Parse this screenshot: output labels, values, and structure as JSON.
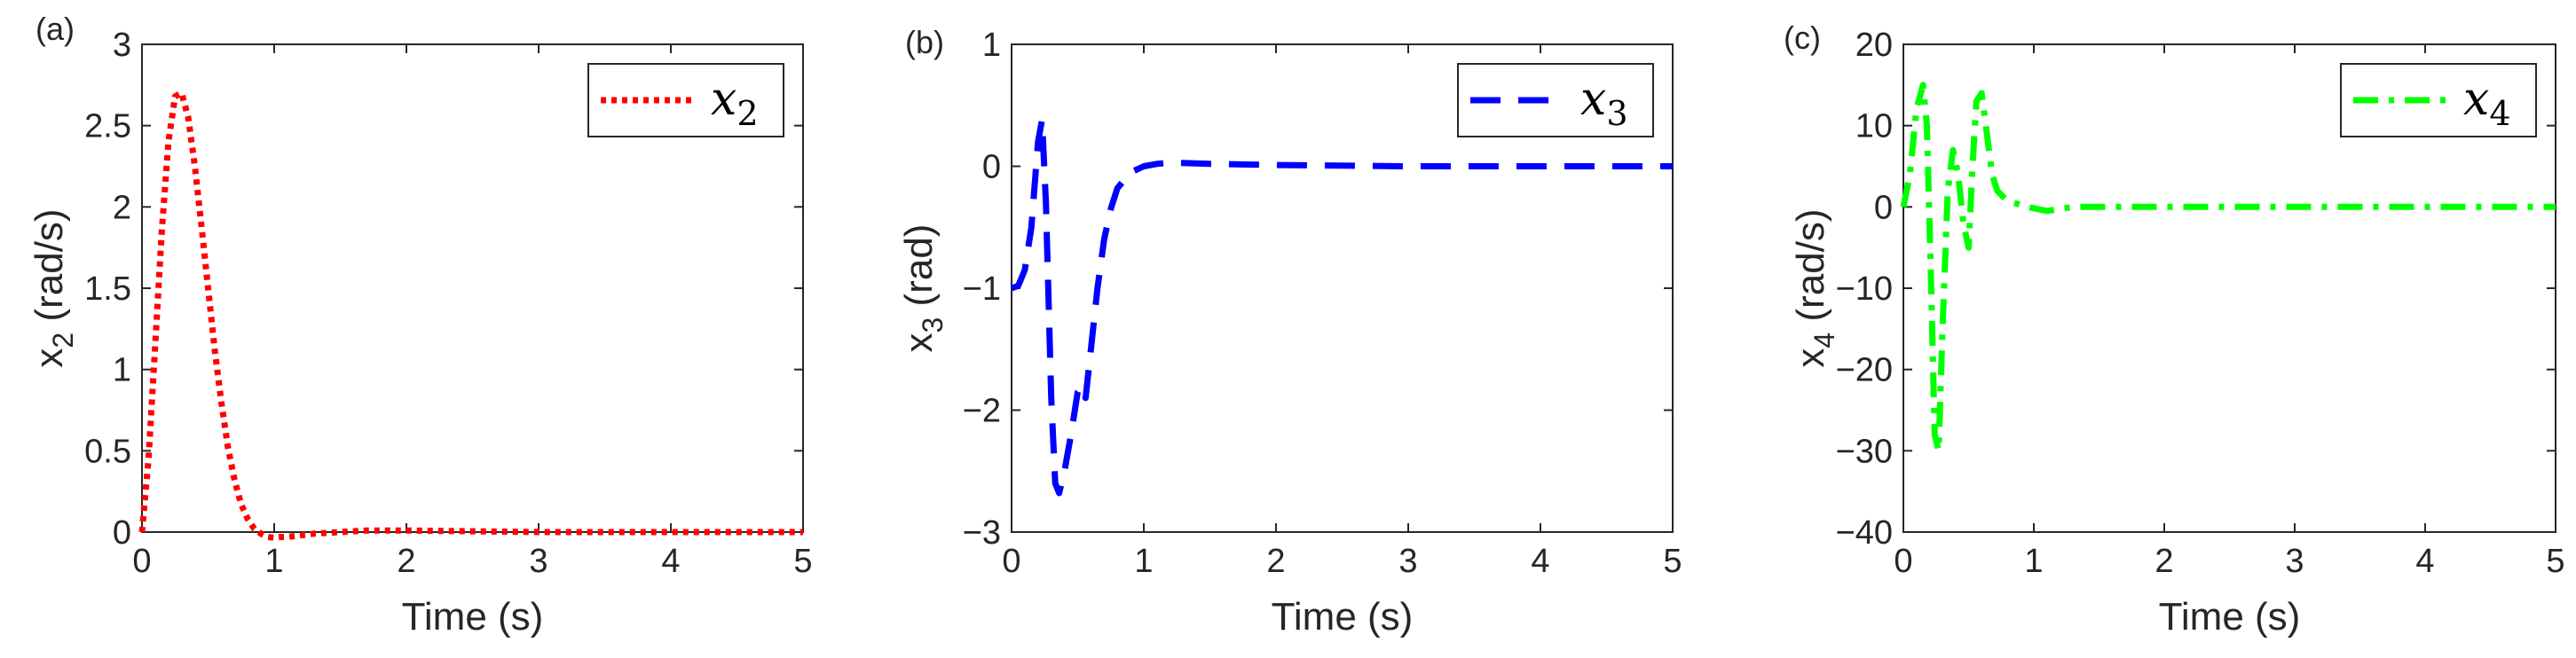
{
  "chart_data": [
    {
      "type": "line",
      "panel_label": "(a)",
      "xlabel": "Time (s)",
      "ylabel": "x",
      "ylabel_sub": "2",
      "ylabel_unit": " (rad/s)",
      "xlim": [
        0,
        5
      ],
      "ylim": [
        0,
        3
      ],
      "xticks": [
        0,
        1,
        2,
        3,
        4,
        5
      ],
      "yticks": [
        0,
        0.5,
        1,
        1.5,
        2,
        2.5,
        3
      ],
      "ytick_labels": [
        "0",
        "0.5",
        "1",
        "1.5",
        "2",
        "2.5",
        "3"
      ],
      "grid": false,
      "legend_position": "top-right",
      "series": [
        {
          "name": "x",
          "name_sub": "2",
          "color": "#ff0000",
          "style": "dotted",
          "x": [
            0,
            0.05,
            0.1,
            0.15,
            0.2,
            0.25,
            0.3,
            0.35,
            0.4,
            0.45,
            0.5,
            0.55,
            0.6,
            0.65,
            0.7,
            0.75,
            0.8,
            0.85,
            0.9,
            0.95,
            1.0,
            1.05,
            1.1,
            1.2,
            1.3,
            1.5,
            1.7,
            2.0,
            3.0,
            4.0,
            5.0
          ],
          "y": [
            0,
            0.45,
            1.15,
            1.85,
            2.4,
            2.68,
            2.7,
            2.55,
            2.25,
            1.88,
            1.5,
            1.12,
            0.8,
            0.52,
            0.32,
            0.17,
            0.08,
            0.02,
            -0.01,
            -0.03,
            -0.035,
            -0.03,
            -0.03,
            -0.02,
            -0.01,
            0.0,
            0.01,
            0.01,
            0.0,
            0.0,
            0.0
          ]
        }
      ]
    },
    {
      "type": "line",
      "panel_label": "(b)",
      "xlabel": "Time (s)",
      "ylabel": "x",
      "ylabel_sub": "3",
      "ylabel_unit": " (rad)",
      "xlim": [
        0,
        5
      ],
      "ylim": [
        -3,
        1
      ],
      "xticks": [
        0,
        1,
        2,
        3,
        4,
        5
      ],
      "yticks": [
        -3,
        -2,
        -1,
        0,
        1
      ],
      "ytick_labels": [
        "−3",
        "−2",
        "−1",
        "0",
        "1"
      ],
      "grid": false,
      "legend_position": "top-right",
      "series": [
        {
          "name": "x",
          "name_sub": "3",
          "color": "#0000ff",
          "style": "dashed",
          "x": [
            0,
            0.05,
            0.1,
            0.15,
            0.2,
            0.23,
            0.26,
            0.3,
            0.33,
            0.36,
            0.4,
            0.45,
            0.5,
            0.53,
            0.56,
            0.6,
            0.65,
            0.7,
            0.75,
            0.8,
            0.9,
            1.0,
            1.1,
            1.2,
            1.5,
            2.0,
            3.0,
            4.0,
            5.0
          ],
          "y": [
            -1.0,
            -0.98,
            -0.85,
            -0.5,
            0.2,
            0.38,
            -0.3,
            -1.9,
            -2.6,
            -2.68,
            -2.5,
            -2.2,
            -1.85,
            -1.8,
            -1.9,
            -1.5,
            -1.0,
            -0.6,
            -0.35,
            -0.18,
            -0.05,
            0.0,
            0.02,
            0.03,
            0.02,
            0.01,
            0.0,
            0.0,
            0.0
          ]
        }
      ]
    },
    {
      "type": "line",
      "panel_label": "(c)",
      "xlabel": "Time (s)",
      "ylabel": "x",
      "ylabel_sub": "4",
      "ylabel_unit": " (rad/s)",
      "xlim": [
        0,
        5
      ],
      "ylim": [
        -40,
        20
      ],
      "xticks": [
        0,
        1,
        2,
        3,
        4,
        5
      ],
      "yticks": [
        -40,
        -30,
        -20,
        -10,
        0,
        10,
        20
      ],
      "ytick_labels": [
        "−40",
        "−30",
        "−20",
        "−10",
        "0",
        "10",
        "20"
      ],
      "grid": false,
      "legend_position": "top-right",
      "series": [
        {
          "name": "x",
          "name_sub": "4",
          "color": "#00ff00",
          "style": "dashdot",
          "x": [
            0,
            0.05,
            0.1,
            0.15,
            0.18,
            0.21,
            0.24,
            0.27,
            0.3,
            0.34,
            0.38,
            0.42,
            0.46,
            0.5,
            0.53,
            0.56,
            0.6,
            0.64,
            0.68,
            0.72,
            0.78,
            0.85,
            0.95,
            1.1,
            1.3,
            2.0,
            3.0,
            4.0,
            5.0
          ],
          "y": [
            0,
            4,
            12,
            15,
            10,
            -8,
            -28,
            -30,
            -15,
            2,
            7,
            4,
            -2,
            -5,
            5,
            13,
            14,
            9,
            4,
            2,
            1,
            0.5,
            0,
            -0.5,
            0,
            0,
            0,
            0,
            0
          ]
        }
      ]
    }
  ]
}
